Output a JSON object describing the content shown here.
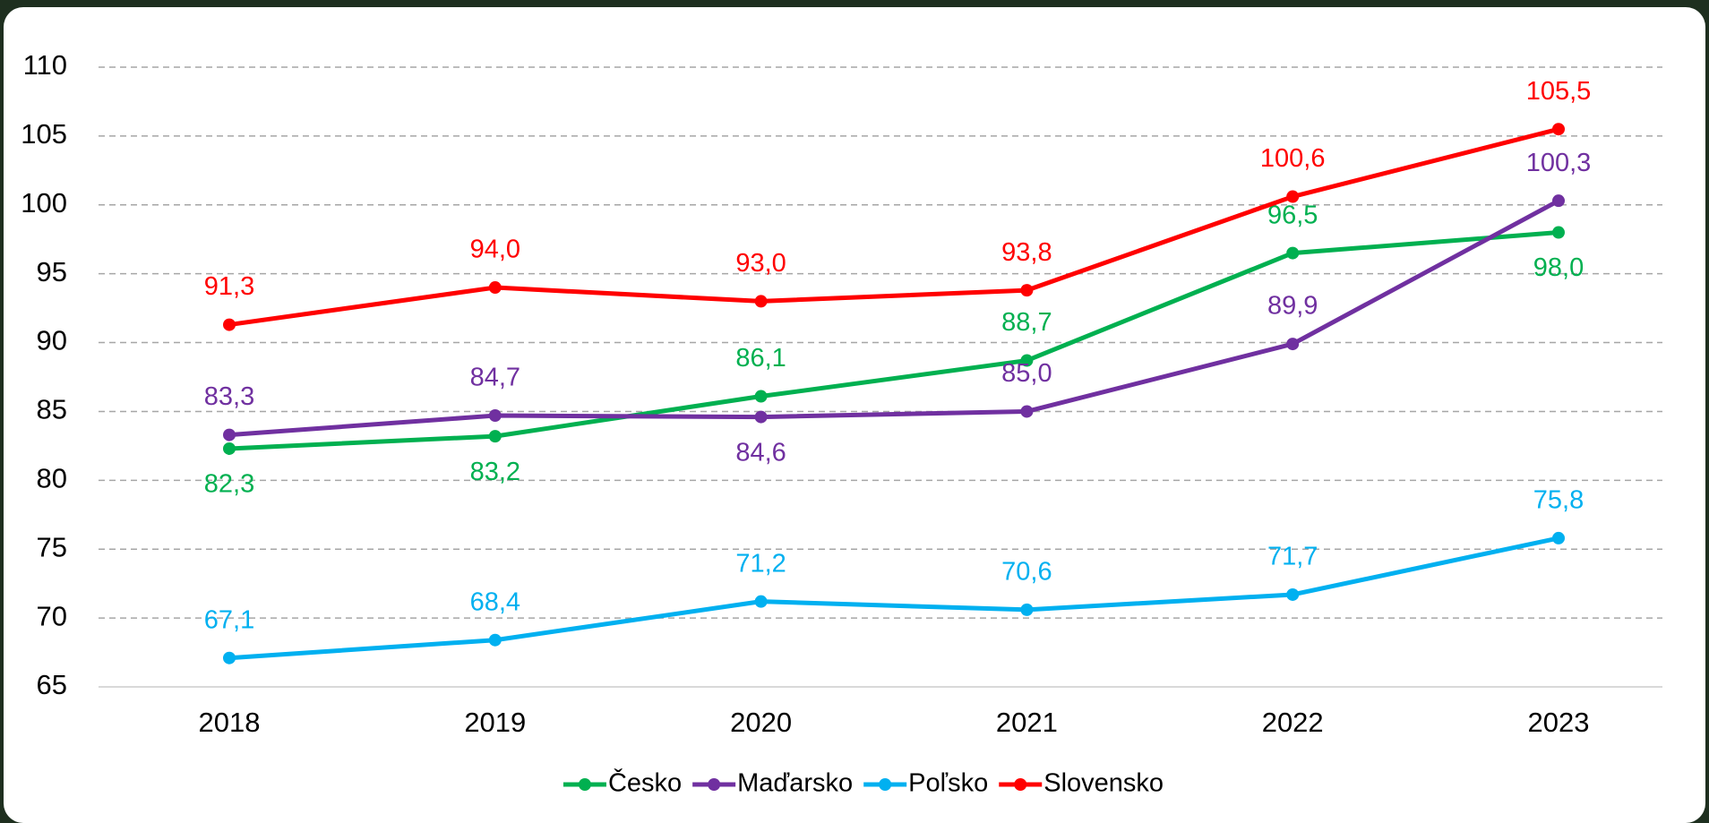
{
  "chart_data": {
    "type": "line",
    "x": [
      2018,
      2019,
      2020,
      2021,
      2022,
      2023
    ],
    "ylim": [
      65,
      110
    ],
    "yticks": [
      65,
      70,
      75,
      80,
      85,
      90,
      95,
      100,
      105,
      110
    ],
    "grid": true,
    "legend": "bottom",
    "series": [
      {
        "name": "Česko",
        "color": "#00b050",
        "values": [
          82.3,
          83.2,
          86.1,
          88.7,
          96.5,
          98.0
        ],
        "value_labels": [
          "82,3",
          "83,2",
          "86,1",
          "88,7",
          "96,5",
          "98,0"
        ]
      },
      {
        "name": "Maďarsko",
        "color": "#7030a0",
        "values": [
          83.3,
          84.7,
          84.6,
          85.0,
          89.9,
          100.3
        ],
        "value_labels": [
          "83,3",
          "84,7",
          "84,6",
          "85,0",
          "89,9",
          "100,3"
        ]
      },
      {
        "name": "Poľsko",
        "color": "#00b0f0",
        "values": [
          67.1,
          68.4,
          71.2,
          70.6,
          71.7,
          75.8
        ],
        "value_labels": [
          "67,1",
          "68,4",
          "71,2",
          "70,6",
          "71,7",
          "75,8"
        ]
      },
      {
        "name": "Slovensko",
        "color": "#ff0000",
        "values": [
          91.3,
          94.0,
          93.0,
          93.8,
          100.6,
          105.5
        ],
        "value_labels": [
          "91,3",
          "94,0",
          "93,0",
          "93,8",
          "100,6",
          "105,5"
        ]
      }
    ]
  }
}
